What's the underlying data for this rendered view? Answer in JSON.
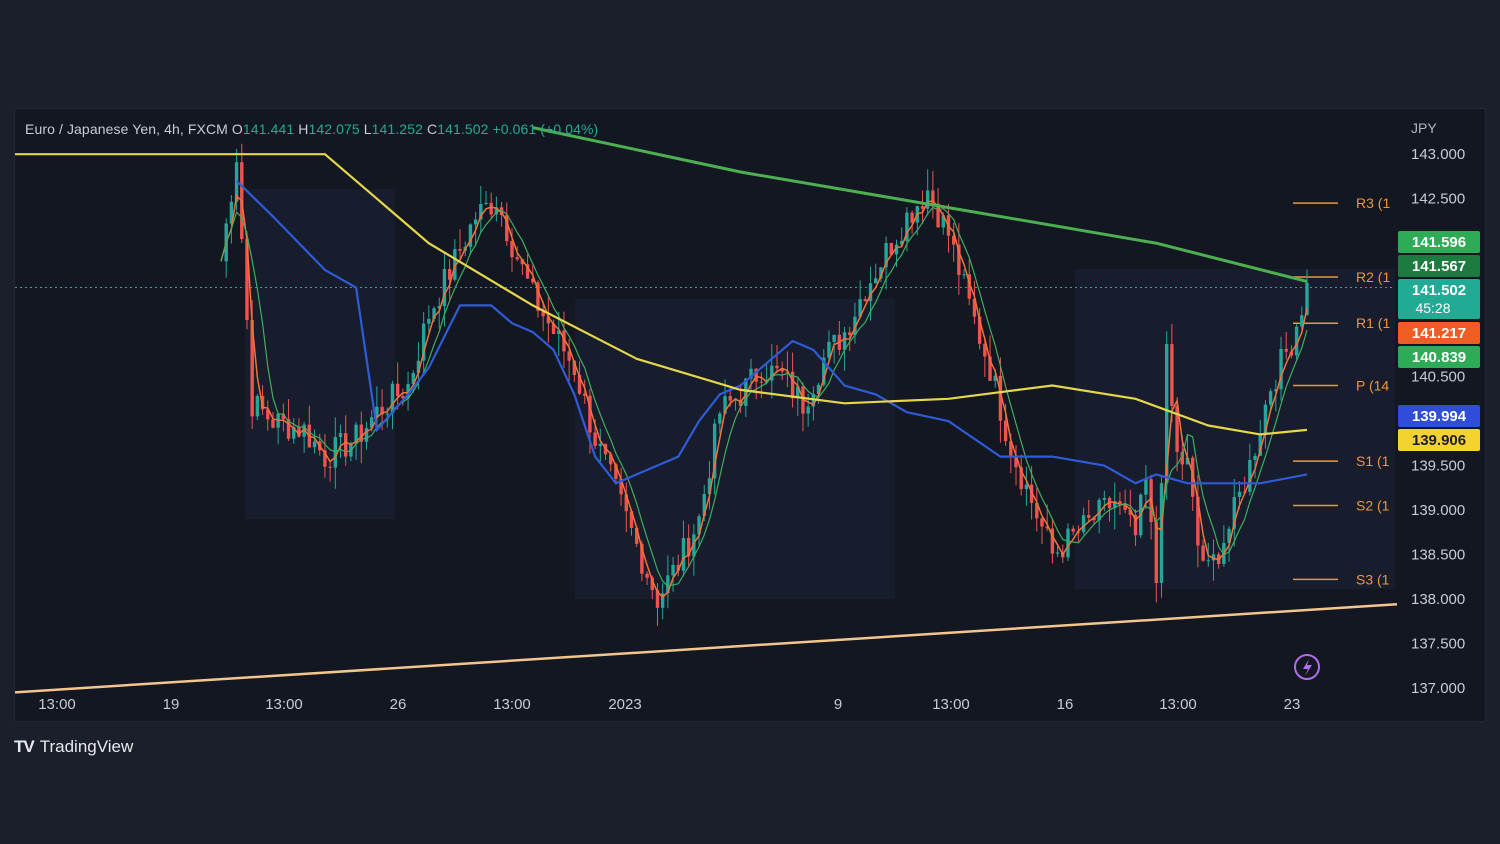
{
  "chart_data": {
    "type": "candlestick",
    "symbol": "Euro / Japanese Yen, 4h, FXCM",
    "ohlc": {
      "o_label": "O",
      "o": "141.441",
      "h_label": "H",
      "h": "142.075",
      "l_label": "L",
      "l": "141.252",
      "c_label": "C",
      "c": "141.502",
      "change": "+0.061 (+0.04%)"
    },
    "currency": "JPY",
    "ylim": [
      136.65,
      143.45
    ],
    "y_ticks": [
      "143.000",
      "142.500",
      "140.500",
      "139.500",
      "139.000",
      "138.500",
      "138.000",
      "137.500",
      "137.000"
    ],
    "x_ticks": [
      "13:00",
      "19",
      "13:00",
      "26",
      "13:00",
      "2023",
      "9",
      "13:00",
      "16",
      "13:00",
      "23"
    ],
    "close_path": [
      [
        0,
        141.8
      ],
      [
        3,
        143.0
      ],
      [
        6,
        140.2
      ],
      [
        10,
        140.0
      ],
      [
        16,
        139.9
      ],
      [
        20,
        139.6
      ],
      [
        26,
        139.8
      ],
      [
        30,
        140.1
      ],
      [
        36,
        140.4
      ],
      [
        40,
        141.2
      ],
      [
        45,
        141.8
      ],
      [
        49,
        142.3
      ],
      [
        53,
        142.5
      ],
      [
        56,
        142.0
      ],
      [
        60,
        141.4
      ],
      [
        64,
        141.0
      ],
      [
        68,
        140.6
      ],
      [
        72,
        139.8
      ],
      [
        76,
        139.2
      ],
      [
        80,
        138.6
      ],
      [
        84,
        138.0
      ],
      [
        88,
        138.4
      ],
      [
        92,
        138.9
      ],
      [
        96,
        140.1
      ],
      [
        100,
        140.3
      ],
      [
        104,
        140.6
      ],
      [
        108,
        140.5
      ],
      [
        112,
        140.2
      ],
      [
        116,
        140.7
      ],
      [
        120,
        141.0
      ],
      [
        124,
        141.5
      ],
      [
        128,
        141.9
      ],
      [
        132,
        142.3
      ],
      [
        136,
        142.6
      ],
      [
        140,
        142.1
      ],
      [
        144,
        141.3
      ],
      [
        148,
        140.6
      ],
      [
        152,
        139.7
      ],
      [
        156,
        139.1
      ],
      [
        160,
        138.5
      ],
      [
        164,
        138.7
      ],
      [
        168,
        138.9
      ],
      [
        172,
        139.1
      ],
      [
        176,
        138.7
      ],
      [
        178,
        139.3
      ],
      [
        180,
        138.2
      ],
      [
        182,
        140.7
      ],
      [
        184,
        139.6
      ],
      [
        186,
        139.5
      ],
      [
        188,
        138.6
      ],
      [
        190,
        138.3
      ],
      [
        194,
        138.8
      ],
      [
        198,
        139.5
      ],
      [
        202,
        140.4
      ],
      [
        206,
        140.9
      ],
      [
        209,
        141.5
      ]
    ],
    "ma_green_path": [
      [
        60,
        143.3
      ],
      [
        100,
        142.8
      ],
      [
        140,
        142.4
      ],
      [
        180,
        142.0
      ],
      [
        209,
        141.57
      ]
    ],
    "ma_yellow_path": [
      [
        0,
        143.0
      ],
      [
        20,
        143.0
      ],
      [
        40,
        142.0
      ],
      [
        60,
        141.3
      ],
      [
        80,
        140.7
      ],
      [
        100,
        140.35
      ],
      [
        120,
        140.2
      ],
      [
        140,
        140.25
      ],
      [
        160,
        140.4
      ],
      [
        176,
        140.25
      ],
      [
        190,
        139.95
      ],
      [
        200,
        139.85
      ],
      [
        209,
        139.9
      ]
    ],
    "ma_blue_path": [
      [
        3,
        142.7
      ],
      [
        10,
        142.3
      ],
      [
        20,
        141.7
      ],
      [
        26,
        141.5
      ],
      [
        30,
        139.9
      ],
      [
        36,
        140.3
      ],
      [
        40,
        140.6
      ],
      [
        46,
        141.3
      ],
      [
        52,
        141.3
      ],
      [
        56,
        141.1
      ],
      [
        60,
        141.0
      ],
      [
        64,
        140.8
      ],
      [
        68,
        140.3
      ],
      [
        72,
        139.6
      ],
      [
        76,
        139.3
      ],
      [
        80,
        139.4
      ],
      [
        84,
        139.5
      ],
      [
        88,
        139.6
      ],
      [
        92,
        140.0
      ],
      [
        96,
        140.3
      ],
      [
        100,
        140.4
      ],
      [
        104,
        140.6
      ],
      [
        110,
        140.9
      ],
      [
        114,
        140.8
      ],
      [
        120,
        140.4
      ],
      [
        126,
        140.3
      ],
      [
        132,
        140.1
      ],
      [
        140,
        140.0
      ],
      [
        150,
        139.6
      ],
      [
        160,
        139.6
      ],
      [
        170,
        139.5
      ],
      [
        176,
        139.3
      ],
      [
        180,
        139.4
      ],
      [
        186,
        139.3
      ],
      [
        194,
        139.3
      ],
      [
        200,
        139.3
      ],
      [
        209,
        139.4
      ]
    ],
    "trendline": {
      "start": [
        0,
        136.95
      ],
      "end": [
        209,
        137.85
      ]
    },
    "pivots": [
      {
        "label": "R3 (1",
        "value": 142.45
      },
      {
        "label": "R2 (1",
        "value": 141.62
      },
      {
        "label": "R1 (1",
        "value": 141.1
      },
      {
        "label": "P (14",
        "value": 140.4
      },
      {
        "label": "S1 (1",
        "value": 139.55
      },
      {
        "label": "S2 (1",
        "value": 139.05
      },
      {
        "label": "S3 (1",
        "value": 138.22
      }
    ],
    "price_tags": [
      {
        "value": "141.596",
        "color": "#2eab57"
      },
      {
        "value": "141.567",
        "color": "#1e7b3f"
      },
      {
        "value": "141.502",
        "sub": "45:28",
        "color": "#22ab94"
      },
      {
        "value": "141.217",
        "color": "#f05d23"
      },
      {
        "value": "140.839",
        "color": "#2eab57"
      },
      {
        "value": "139.994",
        "color": "#2f4dd8"
      },
      {
        "value": "139.906",
        "color": "#f4d22f",
        "text_color": "#1b1f2b"
      }
    ],
    "series_colors": {
      "up": "#26a69a",
      "down": "#ef5350",
      "ma_green": "#4caf50",
      "ma_yellow": "#e6d64a",
      "ma_blue": "#2f5bd8",
      "trend": "#f3c68b",
      "pivot": "#f0953a"
    }
  },
  "branding": {
    "text": "TradingView",
    "logo": "TV"
  }
}
